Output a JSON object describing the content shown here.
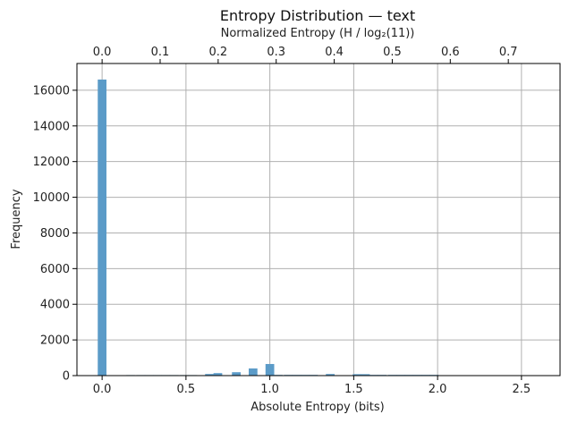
{
  "chart_data": {
    "type": "bar",
    "title": "Entropy Distribution — text",
    "xlabel": "Absolute Entropy (bits)",
    "ylabel": "Frequency",
    "secondary_xlabel": "Normalized Entropy (H / log₂(11))",
    "xlim": [
      -0.15,
      2.73
    ],
    "ylim": [
      0,
      17500
    ],
    "x_ticks": [
      0.0,
      0.5,
      1.0,
      1.5,
      2.0,
      2.5
    ],
    "x_tick_labels": [
      "0.0",
      "0.5",
      "1.0",
      "1.5",
      "2.0",
      "2.5"
    ],
    "y_ticks": [
      0,
      2000,
      4000,
      6000,
      8000,
      10000,
      12000,
      14000,
      16000
    ],
    "y_tick_labels": [
      "0",
      "2000",
      "4000",
      "6000",
      "8000",
      "10000",
      "12000",
      "14000",
      "16000"
    ],
    "secondary_x_ticks": [
      0.0,
      0.1,
      0.2,
      0.3,
      0.4,
      0.5,
      0.6,
      0.7
    ],
    "secondary_x_tick_labels": [
      "0.0",
      "0.1",
      "0.2",
      "0.3",
      "0.4",
      "0.5",
      "0.6",
      "0.7"
    ],
    "secondary_x_scale": 3.4594,
    "grid": true,
    "bar_color": "#5b9bc8",
    "bin_width": 0.0519,
    "bins": [
      {
        "x": 0.0,
        "value": 16600
      },
      {
        "x": 0.17,
        "value": 30
      },
      {
        "x": 0.23,
        "value": 30
      },
      {
        "x": 0.28,
        "value": 30
      },
      {
        "x": 0.33,
        "value": 30
      },
      {
        "x": 0.38,
        "value": 30
      },
      {
        "x": 0.43,
        "value": 30
      },
      {
        "x": 0.49,
        "value": 30
      },
      {
        "x": 0.54,
        "value": 30
      },
      {
        "x": 0.64,
        "value": 90
      },
      {
        "x": 0.69,
        "value": 140
      },
      {
        "x": 0.8,
        "value": 190
      },
      {
        "x": 0.9,
        "value": 400
      },
      {
        "x": 1.0,
        "value": 650
      },
      {
        "x": 1.05,
        "value": 40
      },
      {
        "x": 1.11,
        "value": 40
      },
      {
        "x": 1.16,
        "value": 40
      },
      {
        "x": 1.21,
        "value": 40
      },
      {
        "x": 1.26,
        "value": 40
      },
      {
        "x": 1.36,
        "value": 90
      },
      {
        "x": 1.52,
        "value": 80
      },
      {
        "x": 1.57,
        "value": 80
      },
      {
        "x": 1.62,
        "value": 40
      },
      {
        "x": 1.67,
        "value": 40
      },
      {
        "x": 1.73,
        "value": 40
      },
      {
        "x": 1.78,
        "value": 40
      },
      {
        "x": 1.83,
        "value": 40
      },
      {
        "x": 1.88,
        "value": 40
      },
      {
        "x": 1.93,
        "value": 40
      },
      {
        "x": 1.98,
        "value": 40
      },
      {
        "x": 2.57,
        "value": 15
      }
    ]
  }
}
